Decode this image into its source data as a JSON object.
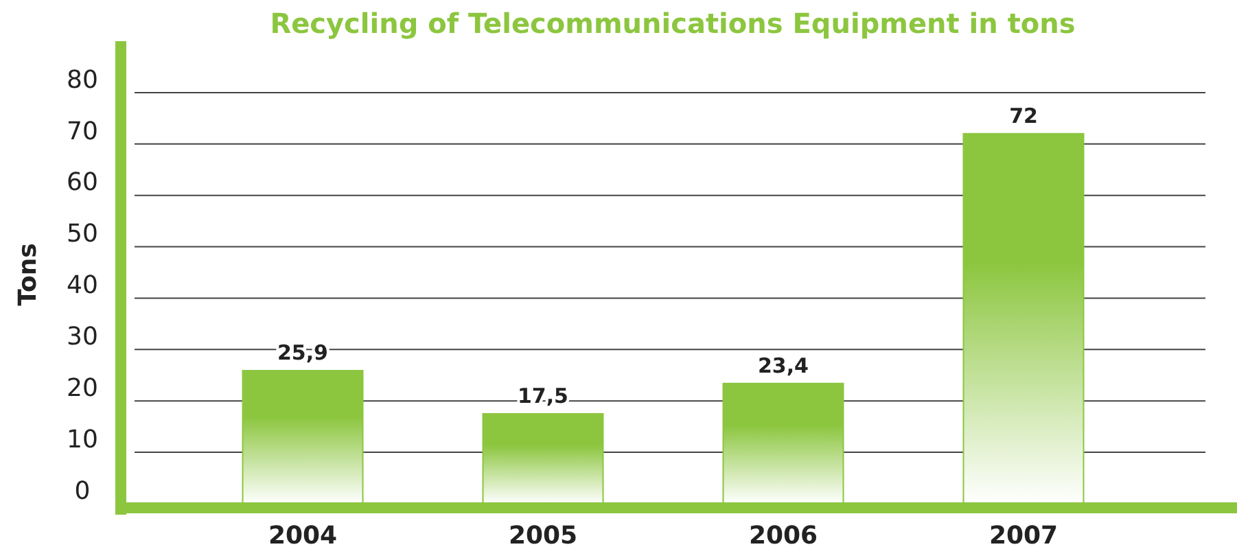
{
  "chart_data": {
    "type": "bar",
    "title": "Recycling of Telecommunications Equipment in tons",
    "ylabel": "Tons",
    "categories": [
      "2004",
      "2005",
      "2006",
      "2007"
    ],
    "values": [
      25.9,
      17.5,
      23.4,
      72
    ],
    "value_labels": [
      "25,9",
      "17,5",
      "23,4",
      "72"
    ],
    "color": "#8cc63f",
    "ylim": [
      0,
      90
    ],
    "yticks": [
      0,
      10,
      20,
      30,
      40,
      50,
      60,
      70,
      80
    ],
    "grid": "y"
  }
}
